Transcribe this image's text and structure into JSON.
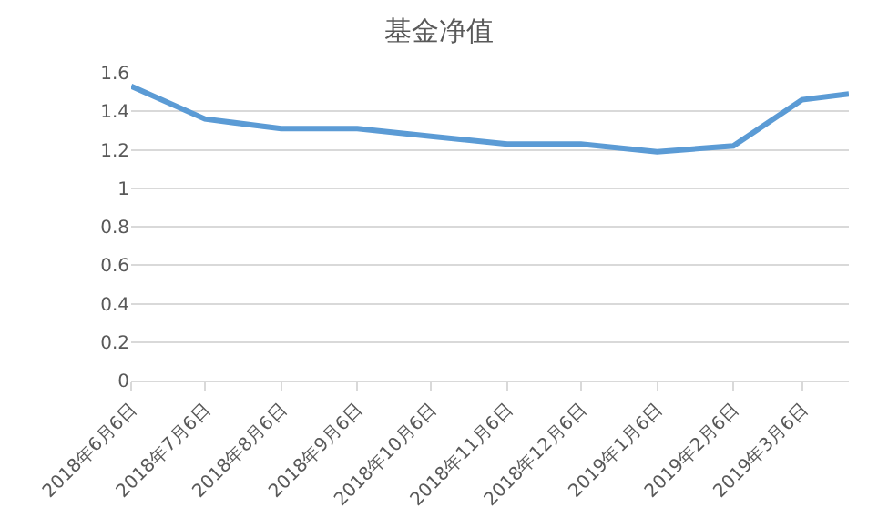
{
  "chart_data": {
    "type": "line",
    "title": "基金净值",
    "x": [
      "2018-06-06",
      "2018-07-06",
      "2018-08-06",
      "2018-09-06",
      "2018-10-06",
      "2018-11-06",
      "2018-12-06",
      "2019-01-06",
      "2019-02-06",
      "2019-03-06",
      "2019-03-25"
    ],
    "series": [
      {
        "color": "#5b9bd5",
        "values": [
          1.53,
          1.36,
          1.31,
          1.31,
          1.27,
          1.23,
          1.23,
          1.19,
          1.22,
          1.46,
          1.49
        ]
      }
    ],
    "xlim": [
      "2018-06-06",
      "2019-03-25"
    ],
    "xticks": [
      {
        "value": "2018-06-06",
        "label": "2018年6月6日"
      },
      {
        "value": "2018-07-06",
        "label": "2018年7月6日"
      },
      {
        "value": "2018-08-06",
        "label": "2018年8月6日"
      },
      {
        "value": "2018-09-06",
        "label": "2018年9月6日"
      },
      {
        "value": "2018-10-06",
        "label": "2018年10月6日"
      },
      {
        "value": "2018-11-06",
        "label": "2018年11月6日"
      },
      {
        "value": "2018-12-06",
        "label": "2018年12月6日"
      },
      {
        "value": "2019-01-06",
        "label": "2019年1月6日"
      },
      {
        "value": "2019-02-06",
        "label": "2019年2月6日"
      },
      {
        "value": "2019-03-06",
        "label": "2019年3月6日"
      }
    ],
    "ylim": [
      0,
      1.6
    ],
    "yticks": [
      0,
      0.2,
      0.4,
      0.6,
      0.8,
      1,
      1.2,
      1.4,
      1.6
    ],
    "grid": "y",
    "marker": "none",
    "line_style": "solid"
  }
}
